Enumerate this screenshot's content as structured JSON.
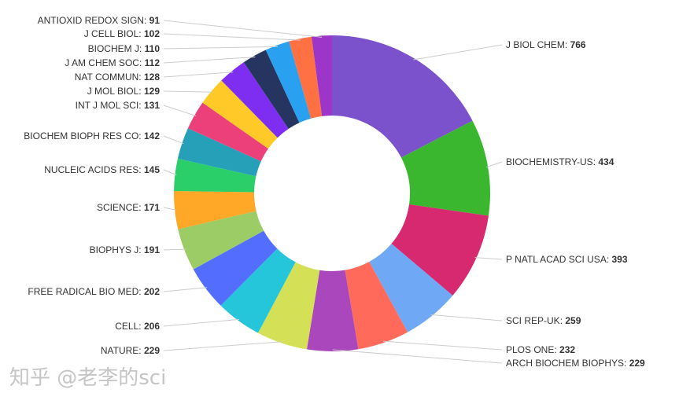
{
  "chart_data": {
    "type": "pie",
    "donut": true,
    "start": "top, clockwise",
    "labels": [
      "J BIOL CHEM",
      "BIOCHEMISTRY-US",
      "P NATL ACAD SCI USA",
      "SCI REP-UK",
      "PLOS ONE",
      "ARCH BIOCHEM BIOPHYS",
      "NATURE",
      "CELL",
      "FREE RADICAL BIO MED",
      "BIOPHYS J",
      "SCIENCE",
      "NUCLEIC ACIDS RES",
      "BIOCHEM BIOPH RES CO",
      "INT J MOL SCI",
      "J MOL BIOL",
      "NAT COMMUN",
      "J AM CHEM SOC",
      "BIOCHEM J",
      "J CELL BIOL",
      "ANTIOXID REDOX SIGN"
    ],
    "values": [
      766,
      434,
      393,
      259,
      232,
      229,
      229,
      206,
      202,
      191,
      171,
      145,
      142,
      131,
      129,
      128,
      112,
      110,
      102,
      91
    ],
    "colors": [
      "#7b52cc",
      "#3ab72f",
      "#d6296f",
      "#6fa8f5",
      "#ff6a5a",
      "#ab47bc",
      "#d4e157",
      "#26c6da",
      "#536dfe",
      "#9ccc65",
      "#ffa726",
      "#2bcf6a",
      "#26a0b8",
      "#ec407a",
      "#ffca28",
      "#7e2ef0",
      "#263560",
      "#2aa0f0",
      "#ff7043",
      "#9c35c8"
    ]
  },
  "watermark": "知乎 @老李的sci"
}
